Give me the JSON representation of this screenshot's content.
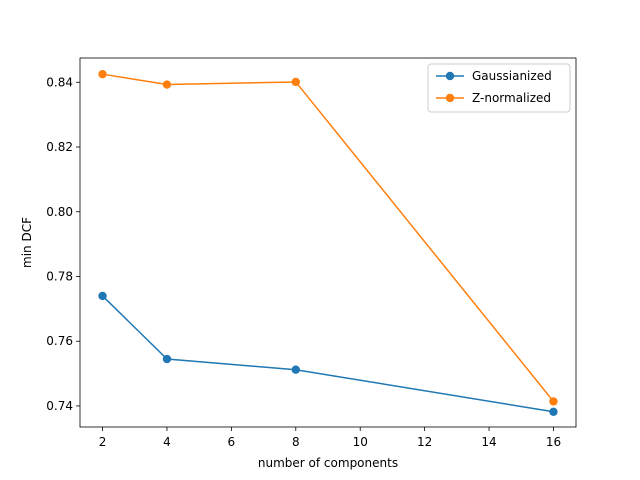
{
  "chart_data": {
    "type": "line",
    "title": "",
    "xlabel": "number of components",
    "ylabel": "min DCF",
    "x": [
      2,
      4,
      8,
      16
    ],
    "xlim": [
      1.3,
      16.7
    ],
    "ylim": [
      0.7335,
      0.8475
    ],
    "xticks": [
      2,
      4,
      6,
      8,
      10,
      12,
      14,
      16
    ],
    "yticks": [
      0.74,
      0.76,
      0.78,
      0.8,
      0.82,
      0.84
    ],
    "ytick_labels": [
      "0.74",
      "0.76",
      "0.78",
      "0.80",
      "0.82",
      "0.84"
    ],
    "grid": false,
    "legend_position": "top-right",
    "series": [
      {
        "name": "Gaussianized",
        "color": "#1f77b4",
        "values": [
          0.774,
          0.7545,
          0.7512,
          0.7382
        ]
      },
      {
        "name": "Z-normalized",
        "color": "#ff7f0e",
        "values": [
          0.8425,
          0.8393,
          0.8401,
          0.7414
        ]
      }
    ]
  }
}
